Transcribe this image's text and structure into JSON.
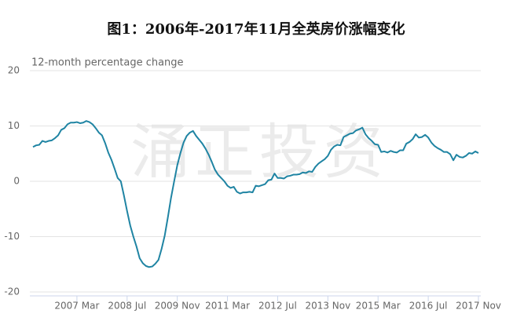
{
  "chart_data": {
    "type": "line",
    "title": "图1：2006年-2017年11月全英房价涨幅变化",
    "y_label": "12-month percentage change",
    "watermark": "涌正投资",
    "color": "#1f84a3",
    "grid": true,
    "ylim": [
      -20,
      20
    ],
    "yticks": [
      -20,
      -10,
      0,
      10,
      20
    ],
    "categories": [
      null,
      null,
      null,
      null,
      null,
      null,
      null,
      null,
      null,
      null,
      null,
      null,
      null,
      null,
      "2007 Mar",
      null,
      null,
      null,
      null,
      null,
      null,
      null,
      null,
      null,
      null,
      null,
      null,
      null,
      null,
      null,
      "2008 Jul",
      null,
      null,
      null,
      null,
      null,
      null,
      null,
      null,
      null,
      null,
      null,
      null,
      null,
      null,
      null,
      "2009 Nov",
      null,
      null,
      null,
      null,
      null,
      null,
      null,
      null,
      null,
      null,
      null,
      null,
      null,
      null,
      null,
      "2011 Mar",
      null,
      null,
      null,
      null,
      null,
      null,
      null,
      null,
      null,
      null,
      null,
      null,
      null,
      null,
      null,
      "2012 Jul",
      null,
      null,
      null,
      null,
      null,
      null,
      null,
      null,
      null,
      null,
      null,
      null,
      null,
      null,
      null,
      "2013 Nov",
      null,
      null,
      null,
      null,
      null,
      null,
      null,
      null,
      null,
      null,
      null,
      null,
      null,
      null,
      null,
      "2015 Mar",
      null,
      null,
      null,
      null,
      null,
      null,
      null,
      null,
      null,
      null,
      null,
      null,
      null,
      null,
      null,
      "2016 Jul",
      null,
      null,
      null,
      null,
      null,
      null,
      null,
      null,
      null,
      null,
      null,
      null,
      null,
      null,
      null,
      "2017 Nov"
    ],
    "values": [
      6.2,
      6.5,
      6.6,
      7.3,
      7.1,
      7.3,
      7.4,
      7.8,
      8.3,
      9.3,
      9.6,
      10.3,
      10.6,
      10.6,
      10.7,
      10.5,
      10.6,
      10.9,
      10.7,
      10.3,
      9.6,
      8.8,
      8.3,
      6.9,
      5.2,
      3.9,
      2.3,
      0.6,
      0.0,
      -2.6,
      -5.4,
      -8.0,
      -10.0,
      -11.8,
      -13.9,
      -14.8,
      -15.3,
      -15.5,
      -15.4,
      -14.9,
      -14.2,
      -12.2,
      -9.8,
      -6.5,
      -3.0,
      0.0,
      2.9,
      5.1,
      7.0,
      8.2,
      8.8,
      9.1,
      8.2,
      7.5,
      6.8,
      5.9,
      4.8,
      3.5,
      2.1,
      1.2,
      0.6,
      0.0,
      -0.8,
      -1.2,
      -1.0,
      -1.9,
      -2.2,
      -2.0,
      -2.0,
      -1.9,
      -2.0,
      -0.8,
      -0.9,
      -0.7,
      -0.5,
      0.2,
      0.3,
      1.4,
      0.6,
      0.6,
      0.5,
      0.9,
      1.0,
      1.2,
      1.2,
      1.3,
      1.6,
      1.5,
      1.8,
      1.7,
      2.6,
      3.2,
      3.6,
      4.0,
      4.6,
      5.7,
      6.3,
      6.6,
      6.5,
      8.0,
      8.3,
      8.6,
      8.7,
      9.2,
      9.4,
      9.7,
      8.5,
      7.8,
      7.3,
      6.7,
      6.6,
      5.3,
      5.4,
      5.2,
      5.5,
      5.3,
      5.2,
      5.6,
      5.6,
      6.8,
      7.1,
      7.6,
      8.5,
      7.9,
      8.0,
      8.4,
      7.9,
      7.0,
      6.4,
      6.0,
      5.7,
      5.3,
      5.3,
      4.9,
      3.8,
      4.8,
      4.4,
      4.3,
      4.6,
      5.1,
      5.0,
      5.4,
      5.1
    ]
  }
}
